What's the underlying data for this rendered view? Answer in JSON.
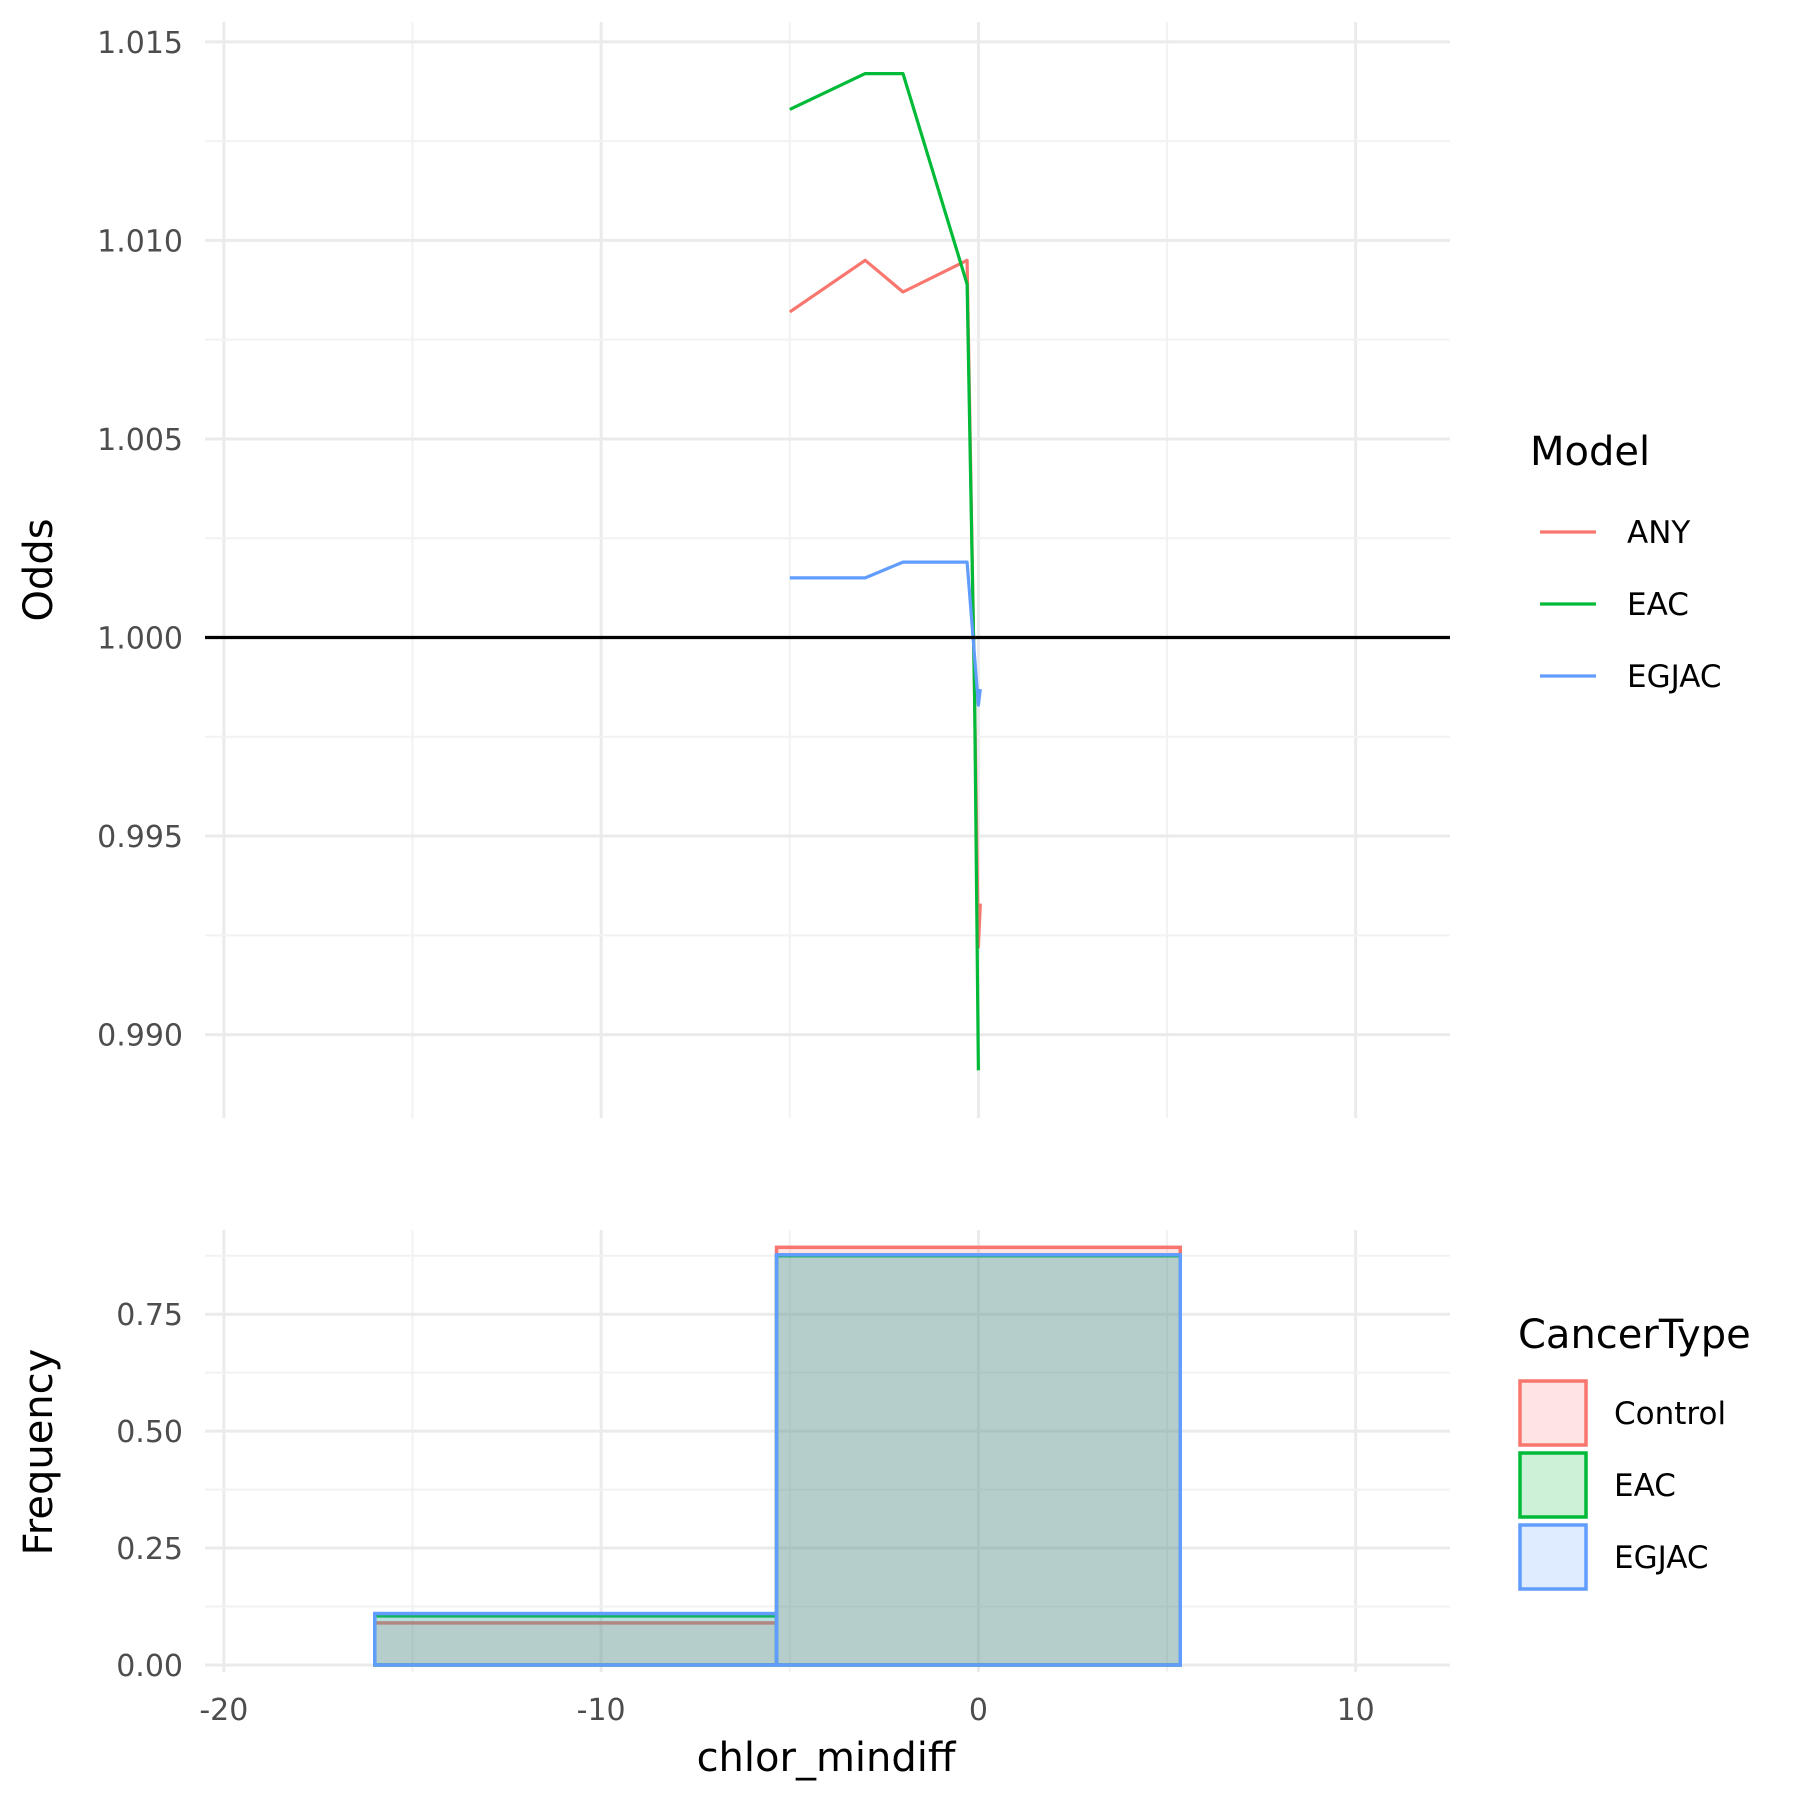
{
  "chart_data": [
    {
      "type": "line",
      "title": "",
      "xlabel": "",
      "ylabel": "Odds",
      "xlim": [
        -20.5,
        12.5
      ],
      "ylim": [
        0.9879,
        1.0155
      ],
      "x_ticks": [
        -20,
        -10,
        0,
        10
      ],
      "y_ticks": [
        0.99,
        0.995,
        1.0,
        1.005,
        1.01,
        1.015
      ],
      "y_tick_labels": [
        "0.990",
        "0.995",
        "1.000",
        "1.005",
        "1.010",
        "1.015"
      ],
      "hline": 1.0,
      "grid": true,
      "legend_title": "Model",
      "legend_position": "right",
      "series": [
        {
          "name": "ANY",
          "color": "#F8766D",
          "x": [
            -5,
            -3,
            -2,
            -0.3,
            -0.1,
            0,
            0.05
          ],
          "y": [
            1.0082,
            1.0095,
            1.0087,
            1.0095,
            0.9985,
            0.9922,
            0.9933
          ]
        },
        {
          "name": "EAC",
          "color": "#00BA38",
          "x": [
            -5,
            -3,
            -2,
            -0.3,
            -0.1,
            0
          ],
          "y": [
            1.0133,
            1.0142,
            1.0142,
            1.0089,
            0.9985,
            0.9891
          ]
        },
        {
          "name": "EGJAC",
          "color": "#619CFF",
          "x": [
            -5,
            -3,
            -2,
            -0.3,
            0,
            0.05
          ],
          "y": [
            1.0015,
            1.0015,
            1.0019,
            1.0019,
            0.9983,
            0.9987
          ]
        }
      ]
    },
    {
      "type": "bar",
      "title": "",
      "xlabel": "chlor_mindiff",
      "ylabel": "Frequency",
      "xlim": [
        -20.5,
        12.5
      ],
      "ylim": [
        -0.015,
        0.93
      ],
      "x_ticks": [
        -20,
        -10,
        0,
        10
      ],
      "x_tick_labels": [
        "-20",
        "-10",
        "0",
        "10"
      ],
      "y_ticks": [
        0,
        0.25,
        0.5,
        0.75
      ],
      "y_tick_labels": [
        "0.00",
        "0.25",
        "0.50",
        "0.75"
      ],
      "grid": true,
      "legend_title": "CancerType",
      "legend_position": "right",
      "bins": [
        [
          -16,
          -5.35
        ],
        [
          -5.35,
          5.35
        ]
      ],
      "series": [
        {
          "name": "Control",
          "color": "#F8766D",
          "fill": "#F8766D",
          "values": [
            0.09,
            0.893
          ]
        },
        {
          "name": "EAC",
          "color": "#00BA38",
          "fill": "#00BA38",
          "values": [
            0.105,
            0.875
          ]
        },
        {
          "name": "EGJAC",
          "color": "#619CFF",
          "fill": "#619CFF",
          "values": [
            0.11,
            0.877
          ]
        }
      ]
    }
  ]
}
